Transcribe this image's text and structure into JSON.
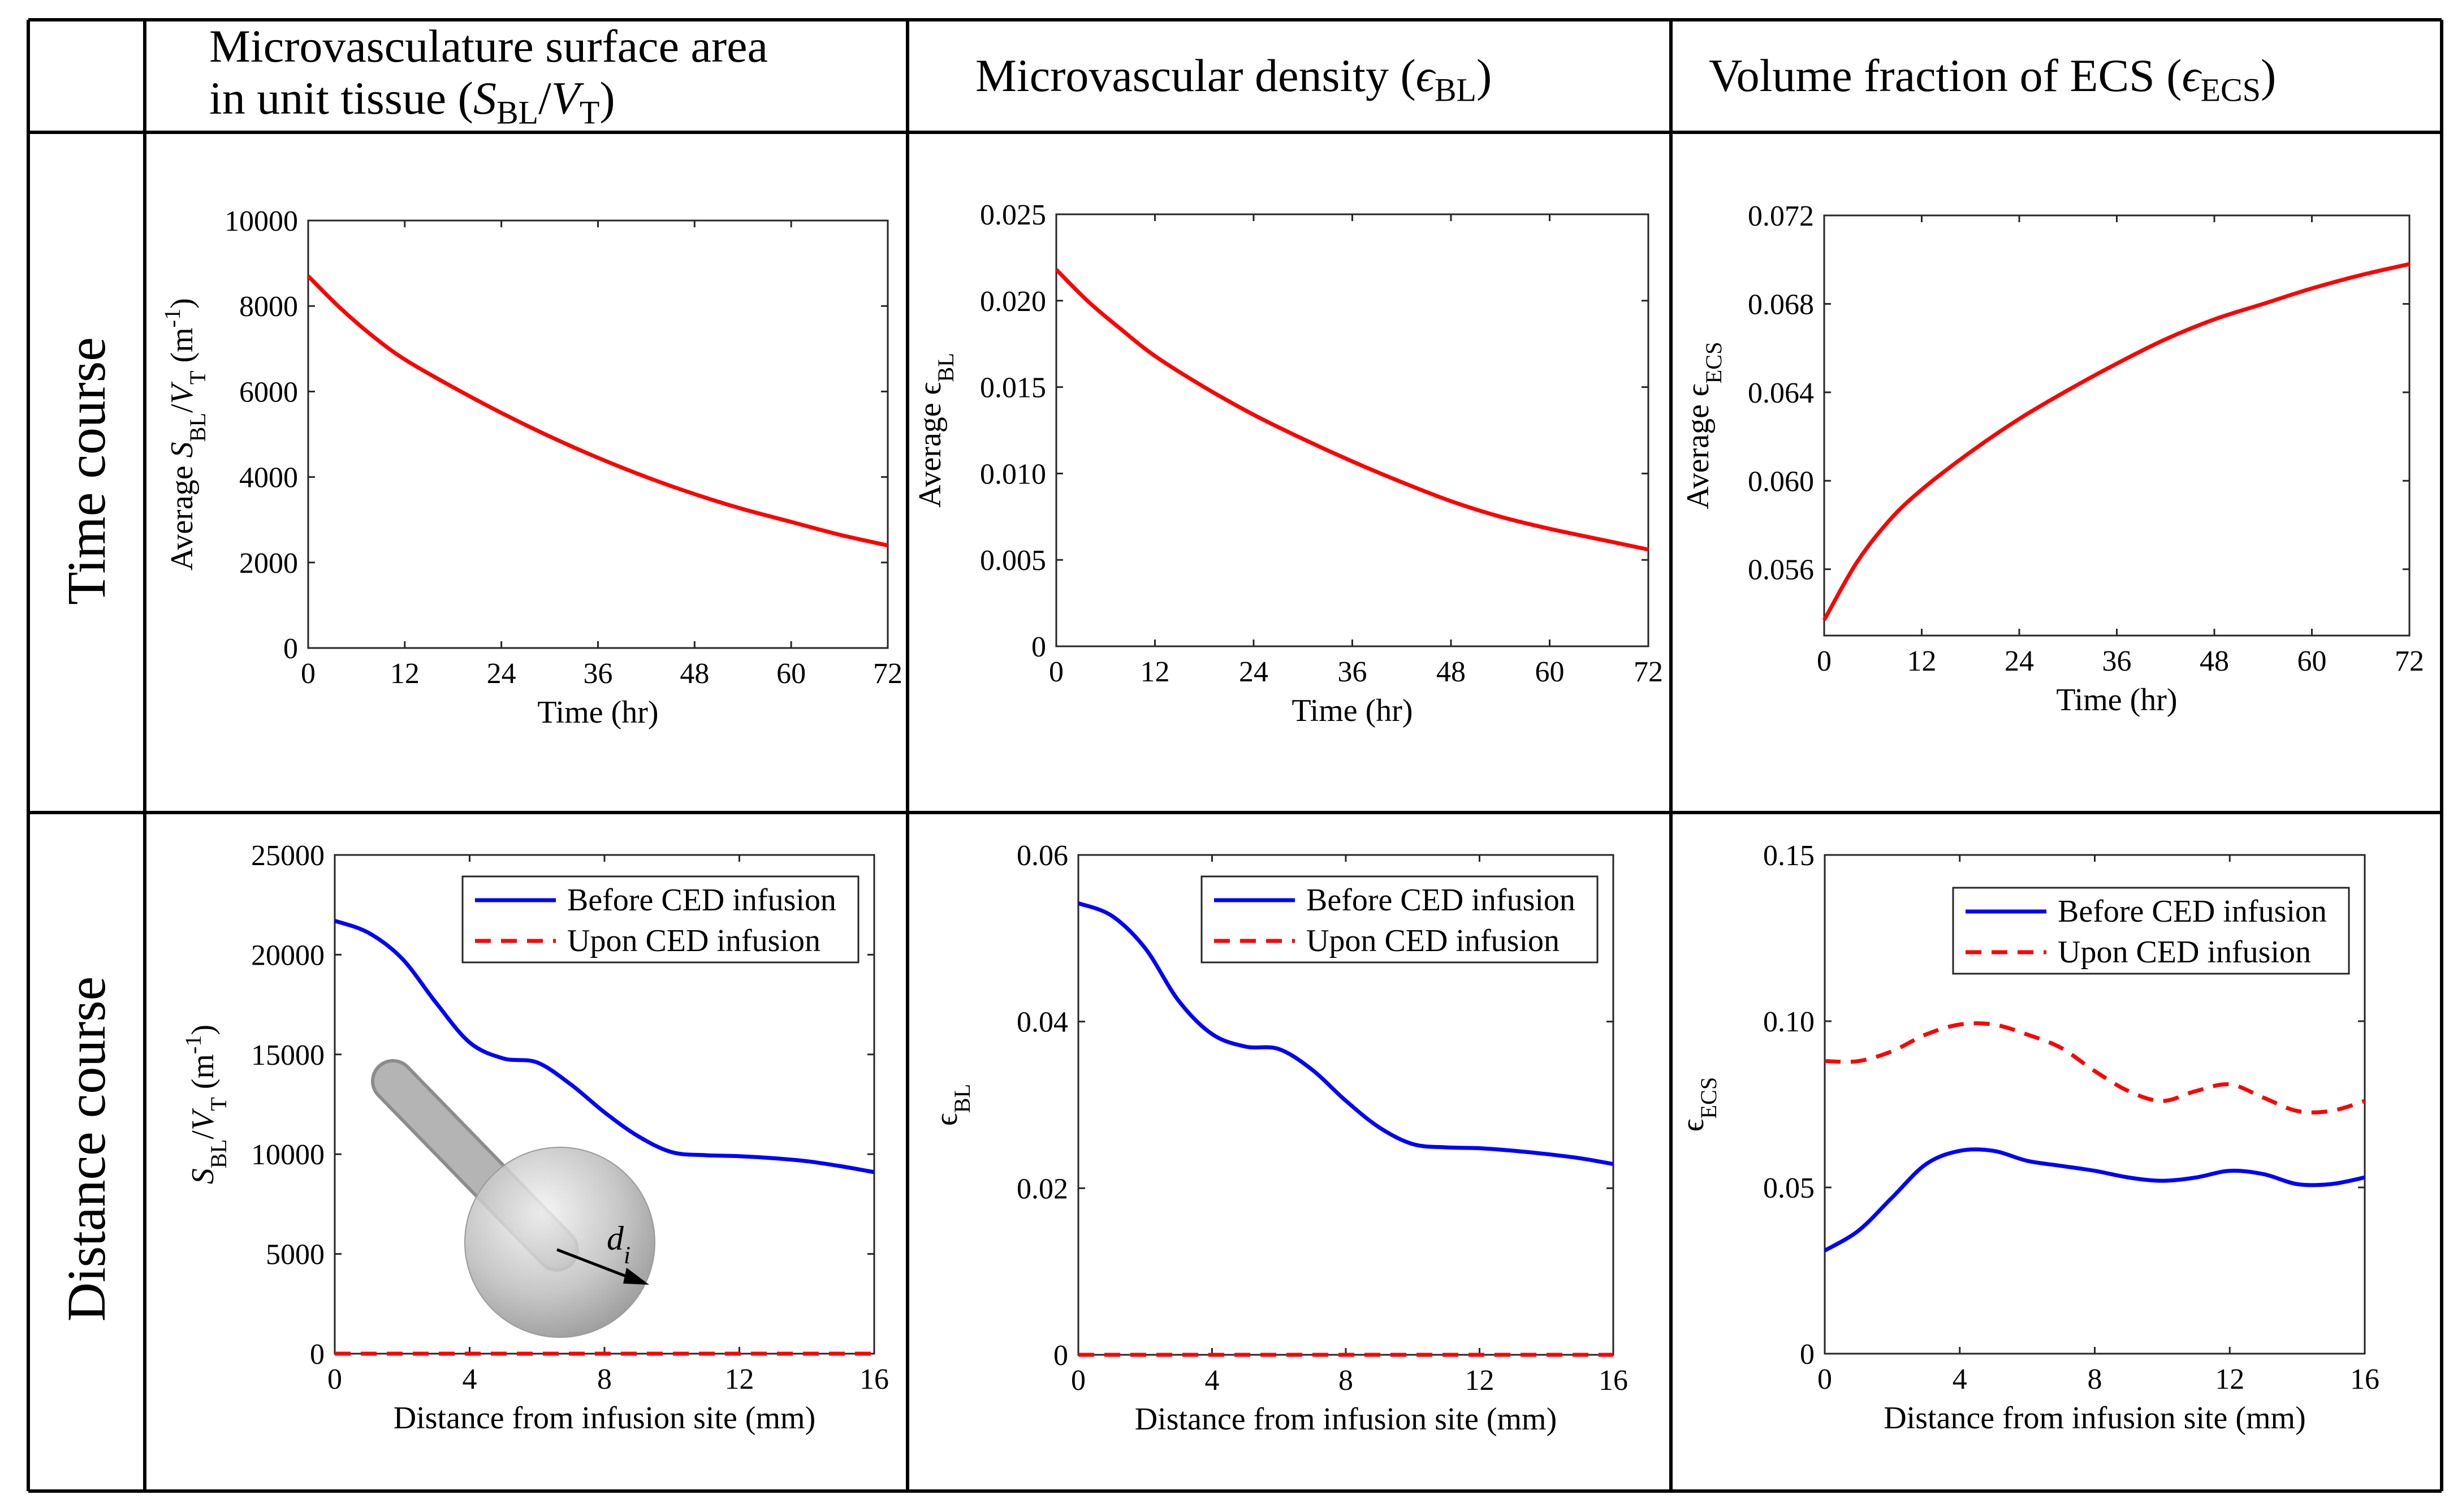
{
  "headers": {
    "col1_line1": "Microvasculature surface area",
    "col1_line2": "in unit tissue (",
    "col1_sym_s": "S",
    "col1_sub_bl": "BL",
    "col1_slash": "/",
    "col1_sym_v": "V",
    "col1_sub_t": "T",
    "col1_close": ")",
    "col2_text": "Microvascular density (",
    "col2_sym": "ϵ",
    "col2_sub": "BL",
    "col2_close": ")",
    "col3_text": "Volume fraction of ECS (",
    "col3_sym": "ϵ",
    "col3_sub": "ECS",
    "col3_close": ")"
  },
  "row_labels": {
    "time": "Time course",
    "distance": "Distance course"
  },
  "colors": {
    "red": "#ff0000",
    "blue": "#0000ff",
    "grid": "#000000"
  },
  "legend": {
    "before": "Before CED infusion",
    "upon": "Upon CED infusion"
  },
  "inset": {
    "label_d": "d",
    "label_i": "i"
  },
  "chart_data": [
    {
      "id": "time-sbl",
      "type": "line",
      "xlabel": "Time (hr)",
      "ylabel": [
        "Average ",
        {
          "t": "S",
          "i": 1
        },
        {
          "t": "BL",
          "sub": 1
        },
        "/",
        {
          "t": "V",
          "i": 1
        },
        {
          "t": "T",
          "sub": 1
        },
        " (m",
        {
          "t": "-1",
          "sup": 1
        },
        ")"
      ],
      "xlim": [
        0,
        72
      ],
      "ylim": [
        0,
        10000
      ],
      "xticks": [
        0,
        12,
        24,
        36,
        48,
        60,
        72
      ],
      "yticks": [
        0,
        2000,
        4000,
        6000,
        8000,
        10000
      ],
      "ytick_labels": [
        "0",
        "2000",
        "4000",
        "6000",
        "8000",
        "10000"
      ],
      "series": [
        {
          "name": "Average SBL/VT",
          "color": "#ff0000",
          "dash": false,
          "x": [
            0,
            4,
            8,
            12,
            18,
            24,
            30,
            36,
            42,
            48,
            54,
            60,
            66,
            72
          ],
          "y": [
            8700,
            7950,
            7300,
            6750,
            6100,
            5500,
            4950,
            4450,
            4000,
            3600,
            3250,
            2950,
            2650,
            2400
          ]
        }
      ]
    },
    {
      "id": "time-ebl",
      "type": "line",
      "xlabel": "Time (hr)",
      "ylabel": [
        "Average ",
        {
          "t": "ϵ"
        },
        {
          "t": "BL",
          "sub": 1
        }
      ],
      "xlim": [
        0,
        72
      ],
      "ylim": [
        0,
        0.025
      ],
      "xticks": [
        0,
        12,
        24,
        36,
        48,
        60,
        72
      ],
      "yticks": [
        0,
        0.005,
        0.01,
        0.015,
        0.02,
        0.025
      ],
      "ytick_labels": [
        "0",
        "0.005",
        "0.010",
        "0.015",
        "0.020",
        "0.025"
      ],
      "series": [
        {
          "name": "Average eBL",
          "color": "#ff0000",
          "dash": false,
          "x": [
            0,
            4,
            8,
            12,
            18,
            24,
            30,
            36,
            42,
            48,
            54,
            60,
            66,
            72
          ],
          "y": [
            0.0218,
            0.0199,
            0.0183,
            0.0168,
            0.015,
            0.0134,
            0.012,
            0.0107,
            0.0095,
            0.0084,
            0.0075,
            0.0068,
            0.0062,
            0.0056
          ]
        }
      ]
    },
    {
      "id": "time-eecs",
      "type": "line",
      "xlabel": "Time (hr)",
      "ylabel": [
        "Average ",
        {
          "t": "ϵ"
        },
        {
          "t": "ECS",
          "sub": 1
        }
      ],
      "xlim": [
        0,
        72
      ],
      "ylim": [
        0.053,
        0.072
      ],
      "xticks": [
        0,
        12,
        24,
        36,
        48,
        60,
        72
      ],
      "yticks": [
        0.056,
        0.06,
        0.064,
        0.068,
        0.072
      ],
      "ytick_labels": [
        "0.056",
        "0.060",
        "0.064",
        "0.068",
        "0.072"
      ],
      "series": [
        {
          "name": "Average eECS",
          "color": "#ff0000",
          "dash": false,
          "x": [
            0,
            4,
            8,
            12,
            18,
            24,
            30,
            36,
            42,
            48,
            54,
            60,
            66,
            72
          ],
          "y": [
            0.0537,
            0.0563,
            0.0582,
            0.0596,
            0.0613,
            0.0628,
            0.0641,
            0.0653,
            0.0664,
            0.0673,
            0.068,
            0.0687,
            0.0693,
            0.0698
          ]
        }
      ]
    },
    {
      "id": "dist-sbl",
      "type": "line",
      "xlabel": "Distance from infusion site (mm)",
      "ylabel": [
        {
          "t": "S",
          "i": 1
        },
        {
          "t": "BL",
          "sub": 1
        },
        "/",
        {
          "t": "V",
          "i": 1
        },
        {
          "t": "T",
          "sub": 1
        },
        " (m",
        {
          "t": "-1",
          "sup": 1
        },
        ")"
      ],
      "xlim": [
        0,
        16
      ],
      "ylim": [
        0,
        25000
      ],
      "xticks": [
        0,
        4,
        8,
        12,
        16
      ],
      "yticks": [
        0,
        5000,
        10000,
        15000,
        20000,
        25000
      ],
      "ytick_labels": [
        "0",
        "5000",
        "10000",
        "15000",
        "20000",
        "25000"
      ],
      "legend_pos": "top-right",
      "series": [
        {
          "name": "Before CED infusion",
          "color": "#0000ff",
          "dash": false,
          "x": [
            0,
            1,
            2,
            3,
            4,
            5,
            6,
            7,
            8,
            9,
            10,
            11,
            12,
            13,
            14,
            15,
            16
          ],
          "y": [
            21700,
            21100,
            19800,
            17600,
            15600,
            14800,
            14600,
            13500,
            12100,
            10900,
            10100,
            9950,
            9900,
            9800,
            9650,
            9400,
            9100
          ]
        },
        {
          "name": "Upon CED infusion",
          "color": "#ff0000",
          "dash": true,
          "x": [
            0,
            16
          ],
          "y": [
            0,
            0
          ]
        }
      ]
    },
    {
      "id": "dist-ebl",
      "type": "line",
      "xlabel": "Distance from infusion site (mm)",
      "ylabel": [
        {
          "t": "ϵ"
        },
        {
          "t": "BL",
          "sub": 1
        }
      ],
      "xlim": [
        0,
        16
      ],
      "ylim": [
        0,
        0.06
      ],
      "xticks": [
        0,
        4,
        8,
        12,
        16
      ],
      "yticks": [
        0,
        0.02,
        0.04,
        0.06
      ],
      "ytick_labels": [
        "0",
        "0.02",
        "0.04",
        "0.06"
      ],
      "legend_pos": "top-right",
      "series": [
        {
          "name": "Before CED infusion",
          "color": "#0000ff",
          "dash": false,
          "x": [
            0,
            1,
            2,
            3,
            4,
            5,
            6,
            7,
            8,
            9,
            10,
            11,
            12,
            13,
            14,
            15,
            16
          ],
          "y": [
            0.0542,
            0.0527,
            0.0488,
            0.0425,
            0.0385,
            0.037,
            0.0367,
            0.0342,
            0.0305,
            0.0273,
            0.0253,
            0.0249,
            0.0248,
            0.0245,
            0.0241,
            0.0236,
            0.0229
          ]
        },
        {
          "name": "Upon CED infusion",
          "color": "#ff0000",
          "dash": true,
          "x": [
            0,
            16
          ],
          "y": [
            0,
            0
          ]
        }
      ]
    },
    {
      "id": "dist-eecs",
      "type": "line",
      "xlabel": "Distance from infusion site (mm)",
      "ylabel": [
        {
          "t": "ϵ"
        },
        {
          "t": "ECS",
          "sub": 1
        }
      ],
      "xlim": [
        0,
        16
      ],
      "ylim": [
        0,
        0.15
      ],
      "xticks": [
        0,
        4,
        8,
        12,
        16
      ],
      "yticks": [
        0,
        0.05,
        0.1,
        0.15
      ],
      "ytick_labels": [
        "0",
        "0.05",
        "0.10",
        "0.15"
      ],
      "legend_pos": "top-right",
      "series": [
        {
          "name": "Before CED infusion",
          "color": "#0000ff",
          "dash": false,
          "x": [
            0,
            1,
            2,
            3,
            4,
            5,
            6,
            7,
            8,
            9,
            10,
            11,
            12,
            13,
            14,
            15,
            16
          ],
          "y": [
            0.031,
            0.037,
            0.047,
            0.057,
            0.061,
            0.061,
            0.058,
            0.0565,
            0.055,
            0.053,
            0.052,
            0.053,
            0.055,
            0.054,
            0.051,
            0.051,
            0.053
          ]
        },
        {
          "name": "Upon CED infusion",
          "color": "#ff0000",
          "dash": true,
          "x": [
            0,
            1,
            2,
            3,
            4,
            5,
            6,
            7,
            8,
            9,
            10,
            11,
            12,
            13,
            14,
            15,
            16
          ],
          "y": [
            0.088,
            0.088,
            0.091,
            0.096,
            0.099,
            0.099,
            0.096,
            0.092,
            0.085,
            0.079,
            0.076,
            0.079,
            0.081,
            0.077,
            0.073,
            0.073,
            0.076
          ]
        }
      ]
    }
  ]
}
